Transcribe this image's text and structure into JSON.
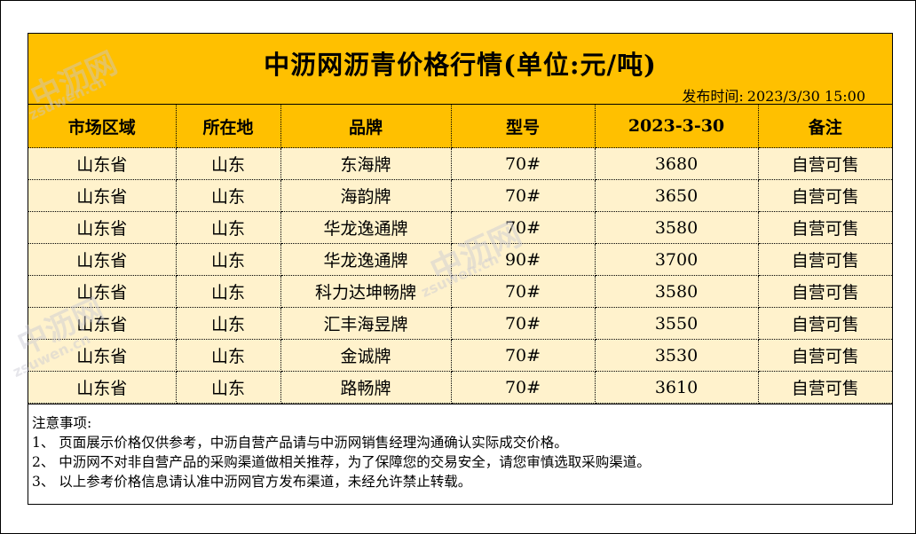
{
  "title": "中沥网沥青价格行情(单位:元/吨)",
  "publish": {
    "label": "发布时间:",
    "value": "2023/3/30 15:00"
  },
  "table": {
    "headers": [
      "市场区域",
      "所在地",
      "品牌",
      "型号",
      "2023-3-30",
      "备注"
    ],
    "rows": [
      [
        "山东省",
        "山东",
        "东海牌",
        "70#",
        "3680",
        "自营可售"
      ],
      [
        "山东省",
        "山东",
        "海韵牌",
        "70#",
        "3650",
        "自营可售"
      ],
      [
        "山东省",
        "山东",
        "华龙逸通牌",
        "70#",
        "3580",
        "自营可售"
      ],
      [
        "山东省",
        "山东",
        "华龙逸通牌",
        "90#",
        "3700",
        "自营可售"
      ],
      [
        "山东省",
        "山东",
        "科力达坤畅牌",
        "70#",
        "3580",
        "自营可售"
      ],
      [
        "山东省",
        "山东",
        "汇丰海昱牌",
        "70#",
        "3550",
        "自营可售"
      ],
      [
        "山东省",
        "山东",
        "金诚牌",
        "70#",
        "3530",
        "自营可售"
      ],
      [
        "山东省",
        "山东",
        "路畅牌",
        "70#",
        "3610",
        "自营可售"
      ]
    ]
  },
  "notes": {
    "heading": "注意事项:",
    "items": [
      "1、 页面展示价格仅供参考，中沥自营产品请与中沥网销售经理沟通确认实际成交价格。",
      "2、 中沥网不对非自营产品的采购渠道做相关推荐，为了保障您的交易安全，请您审慎选取采购渠道。",
      "3、 以上参考价格信息请认准中沥网官方发布渠道，未经允许禁止转载。"
    ]
  },
  "watermark": {
    "brand": "中沥网",
    "domain": "zsuwen.cn"
  },
  "colors": {
    "header_fill": "#ffc000",
    "row_fill": "#fff2cc"
  }
}
